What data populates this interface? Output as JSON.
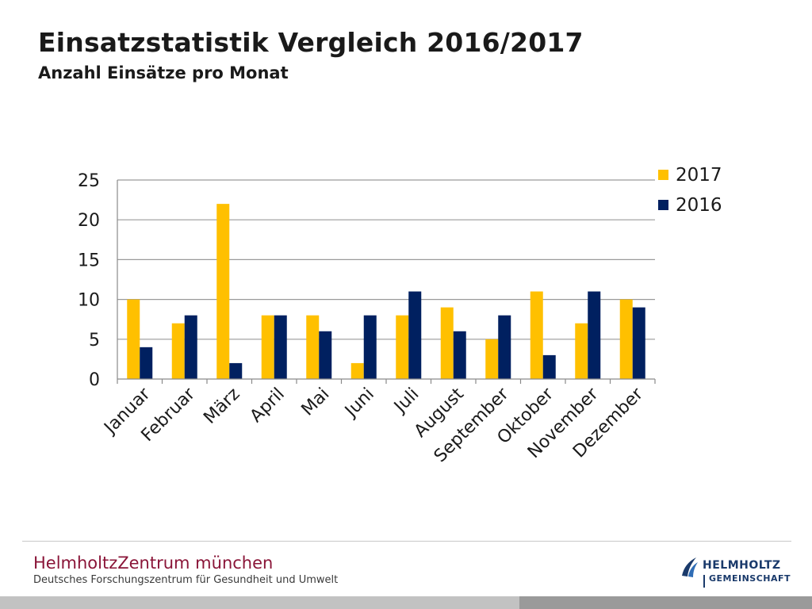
{
  "header": {
    "title": "Einsatzstatistik Vergleich 2016/2017",
    "subtitle": "Anzahl Einsätze pro Monat"
  },
  "chart_data": {
    "type": "bar",
    "categories": [
      "Januar",
      "Februar",
      "März",
      "April",
      "Mai",
      "Juni",
      "Juli",
      "August",
      "September",
      "Oktober",
      "November",
      "Dezember"
    ],
    "series": [
      {
        "name": "2017",
        "color": "#ffc000",
        "values": [
          10,
          7,
          22,
          8,
          8,
          2,
          8,
          9,
          5,
          11,
          7,
          10
        ]
      },
      {
        "name": "2016",
        "color": "#002060",
        "values": [
          4,
          8,
          2,
          8,
          6,
          8,
          11,
          6,
          8,
          3,
          11,
          9
        ]
      }
    ],
    "ylim": [
      0,
      25
    ],
    "yticks": [
      0,
      5,
      10,
      15,
      20,
      25
    ],
    "grid": true,
    "legend": "top-right",
    "xlabel": "",
    "ylabel": ""
  },
  "footer": {
    "brand": "HelmholtzZentrum münchen",
    "tagline": "Deutsches Forschungszentrum für Gesundheit und Umwelt",
    "logo_line1": "HELMHOLTZ",
    "logo_line2": "GEMEINSCHAFT",
    "brand_color": "#8a1538",
    "logo_color": "#1a3a6b"
  }
}
